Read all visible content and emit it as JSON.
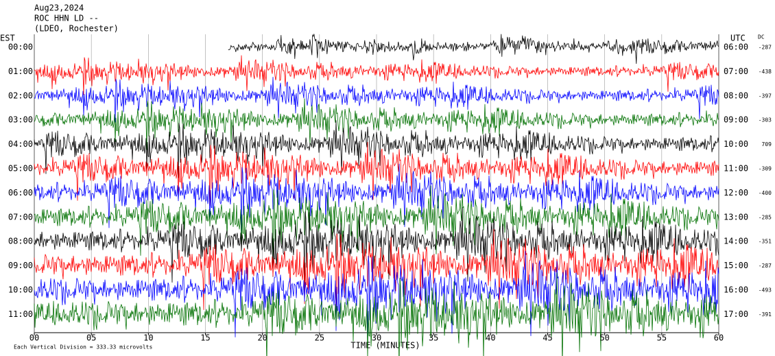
{
  "chart_data": {
    "type": "helicorder",
    "header": [
      "Aug23,2024",
      "ROC HHN LD --",
      "(LDEO, Rochester)"
    ],
    "left_label": "EST",
    "right_label": "UTC",
    "dc_label": "DC",
    "xlabel": "TIME (MINUTES)",
    "footer": "Each Vertical Division =  333.33 microvolts",
    "xlim": [
      0,
      60
    ],
    "xticks": [
      {
        "value": 0,
        "label": "00"
      },
      {
        "value": 5,
        "label": "05"
      },
      10,
      15,
      20,
      25,
      30,
      35,
      40,
      45,
      50,
      55,
      60
    ],
    "grid": true,
    "first_trace_start": 17,
    "rows": [
      {
        "est": "00:00",
        "utc": "06:00",
        "dc": -287,
        "color": "#000000"
      },
      {
        "est": "01:00",
        "utc": "07:00",
        "dc": -438,
        "color": "#ff0000"
      },
      {
        "est": "02:00",
        "utc": "08:00",
        "dc": -397,
        "color": "#0000ff"
      },
      {
        "est": "03:00",
        "utc": "09:00",
        "dc": -303,
        "color": "#007000"
      },
      {
        "est": "04:00",
        "utc": "10:00",
        "dc": 709,
        "color": "#000000"
      },
      {
        "est": "05:00",
        "utc": "11:00",
        "dc": -309,
        "color": "#ff0000"
      },
      {
        "est": "06:00",
        "utc": "12:00",
        "dc": -400,
        "color": "#0000ff"
      },
      {
        "est": "07:00",
        "utc": "13:00",
        "dc": -285,
        "color": "#007000"
      },
      {
        "est": "08:00",
        "utc": "14:00",
        "dc": -351,
        "color": "#000000"
      },
      {
        "est": "09:00",
        "utc": "15:00",
        "dc": -287,
        "color": "#ff0000"
      },
      {
        "est": "10:00",
        "utc": "16:00",
        "dc": -493,
        "color": "#0000ff"
      },
      {
        "est": "11:00",
        "utc": "17:00",
        "dc": -391,
        "color": "#007000"
      }
    ]
  }
}
